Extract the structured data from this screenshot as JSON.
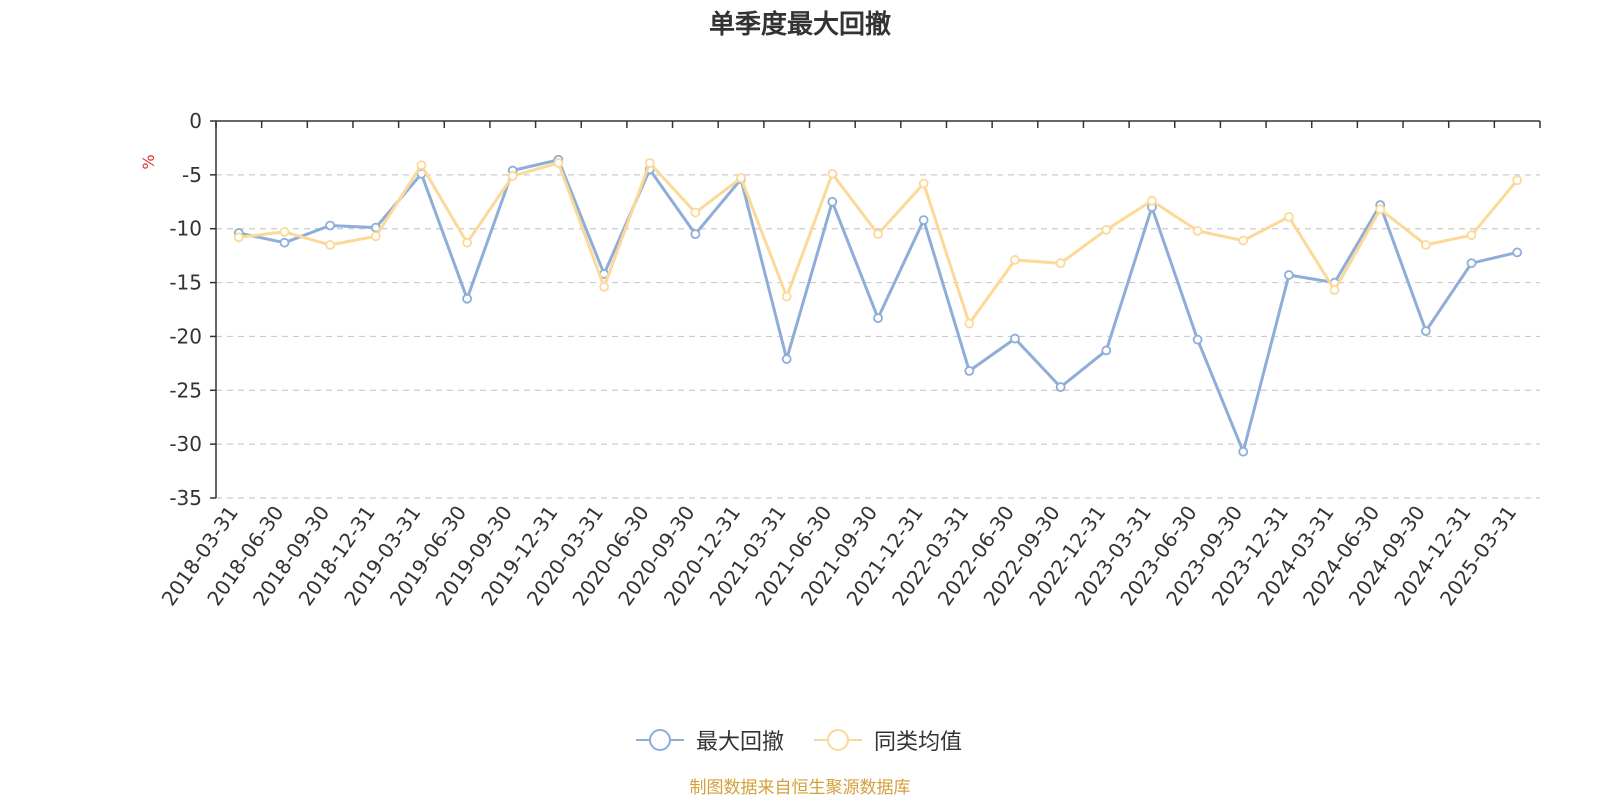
{
  "chart_data": {
    "type": "line",
    "title": "单季度最大回撤",
    "ylabel": "%",
    "ylim": [
      -35,
      0
    ],
    "yticks": [
      0,
      -5,
      -10,
      -15,
      -20,
      -25,
      -30,
      -35
    ],
    "grid": true,
    "legend_position": "bottom",
    "x": [
      "2018-03-31",
      "2018-06-30",
      "2018-09-30",
      "2018-12-31",
      "2019-03-31",
      "2019-06-30",
      "2019-09-30",
      "2019-12-31",
      "2020-03-31",
      "2020-06-30",
      "2020-09-30",
      "2020-12-31",
      "2021-03-31",
      "2021-06-30",
      "2021-09-30",
      "2021-12-31",
      "2022-03-31",
      "2022-06-30",
      "2022-09-30",
      "2022-12-31",
      "2023-03-31",
      "2023-06-30",
      "2023-09-30",
      "2023-12-31",
      "2024-03-31",
      "2024-06-30",
      "2024-09-30",
      "2024-12-31",
      "2025-03-31"
    ],
    "series": [
      {
        "name": "最大回撤",
        "color": "#8eadd8",
        "values": [
          -10.4,
          -11.3,
          -9.7,
          -9.9,
          -4.9,
          -16.5,
          -4.6,
          -3.6,
          -14.2,
          -4.5,
          -10.5,
          -5.4,
          -22.1,
          -7.5,
          -18.3,
          -9.2,
          -23.2,
          -20.2,
          -24.7,
          -21.3,
          -8.0,
          -20.3,
          -30.7,
          -14.3,
          -15.0,
          -7.8,
          -19.5,
          -13.2,
          -12.2
        ]
      },
      {
        "name": "同类均值",
        "color": "#fcd999",
        "values": [
          -10.8,
          -10.3,
          -11.5,
          -10.7,
          -4.1,
          -11.3,
          -5.1,
          -3.9,
          -15.4,
          -3.9,
          -8.5,
          -5.3,
          -16.3,
          -4.9,
          -10.5,
          -5.8,
          -18.8,
          -12.9,
          -13.2,
          -10.1,
          -7.4,
          -10.2,
          -11.1,
          -8.9,
          -15.7,
          -8.2,
          -11.5,
          -10.6,
          -5.5
        ]
      }
    ]
  },
  "footer": {
    "source_text": "制图数据来自恒生聚源数据库",
    "source_color": "#d4a03a"
  }
}
